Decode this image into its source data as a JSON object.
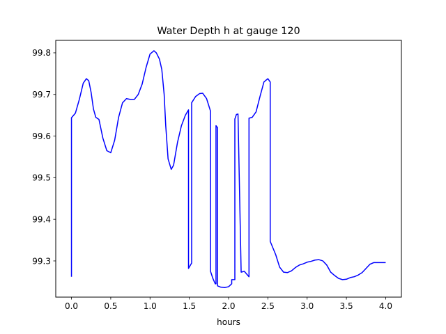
{
  "chart_data": {
    "type": "line",
    "title": "Water Depth h at gauge 120",
    "xlabel": "hours",
    "ylabel": "",
    "xlim": [
      -0.2,
      4.2
    ],
    "ylim": [
      99.213,
      99.83
    ],
    "xticks": [
      0.0,
      0.5,
      1.0,
      1.5,
      2.0,
      2.5,
      3.0,
      3.5,
      4.0
    ],
    "xtick_labels": [
      "0.0",
      "0.5",
      "1.0",
      "1.5",
      "2.0",
      "2.5",
      "3.0",
      "3.5",
      "4.0"
    ],
    "yticks": [
      99.3,
      99.4,
      99.5,
      99.6,
      99.7,
      99.8
    ],
    "ytick_labels": [
      "99.3",
      "99.4",
      "99.5",
      "99.6",
      "99.7",
      "99.8"
    ],
    "grid": false,
    "legend": "none",
    "series": [
      {
        "color": "#0000ff",
        "x": [
          0.0,
          0.0,
          0.05,
          0.1,
          0.15,
          0.19,
          0.22,
          0.25,
          0.28,
          0.31,
          0.35,
          0.4,
          0.45,
          0.5,
          0.55,
          0.6,
          0.65,
          0.7,
          0.75,
          0.8,
          0.85,
          0.9,
          0.95,
          1.0,
          1.05,
          1.08,
          1.12,
          1.15,
          1.18,
          1.2,
          1.23,
          1.27,
          1.3,
          1.35,
          1.4,
          1.45,
          1.49,
          1.49,
          1.53,
          1.53,
          1.58,
          1.63,
          1.67,
          1.72,
          1.77,
          1.77,
          1.8,
          1.83,
          1.84,
          1.84,
          1.86,
          1.86,
          1.9,
          1.95,
          2.0,
          2.04,
          2.04,
          2.08,
          2.08,
          2.1,
          2.12,
          2.16,
          2.2,
          2.26,
          2.26,
          2.3,
          2.35,
          2.4,
          2.45,
          2.5,
          2.53,
          2.53,
          2.6,
          2.65,
          2.7,
          2.75,
          2.8,
          2.85,
          2.9,
          2.95,
          3.0,
          3.05,
          3.1,
          3.15,
          3.2,
          3.25,
          3.3,
          3.35,
          3.4,
          3.45,
          3.5,
          3.55,
          3.6,
          3.65,
          3.7,
          3.75,
          3.8,
          3.85,
          3.9,
          3.95,
          4.0
        ],
        "y": [
          99.262,
          99.644,
          99.655,
          99.688,
          99.727,
          99.738,
          99.733,
          99.705,
          99.665,
          99.645,
          99.64,
          99.595,
          99.565,
          99.56,
          99.59,
          99.645,
          99.68,
          99.69,
          99.688,
          99.688,
          99.7,
          99.725,
          99.765,
          99.797,
          99.805,
          99.8,
          99.785,
          99.76,
          99.7,
          99.625,
          99.545,
          99.52,
          99.53,
          99.585,
          99.625,
          99.65,
          99.663,
          99.282,
          99.295,
          99.68,
          99.695,
          99.702,
          99.703,
          99.69,
          99.66,
          99.275,
          99.258,
          99.245,
          99.245,
          99.625,
          99.62,
          99.24,
          99.237,
          99.236,
          99.238,
          99.245,
          99.255,
          99.255,
          99.641,
          99.652,
          99.653,
          99.273,
          99.275,
          99.262,
          99.643,
          99.645,
          99.658,
          99.695,
          99.73,
          99.738,
          99.73,
          99.347,
          99.315,
          99.285,
          99.273,
          99.272,
          99.276,
          99.284,
          99.29,
          99.293,
          99.297,
          99.299,
          99.302,
          99.303,
          99.3,
          99.29,
          99.273,
          99.265,
          99.258,
          99.255,
          99.256,
          99.26,
          99.262,
          99.266,
          99.272,
          99.282,
          99.292,
          99.296,
          99.296,
          99.296,
          99.296
        ]
      }
    ]
  }
}
